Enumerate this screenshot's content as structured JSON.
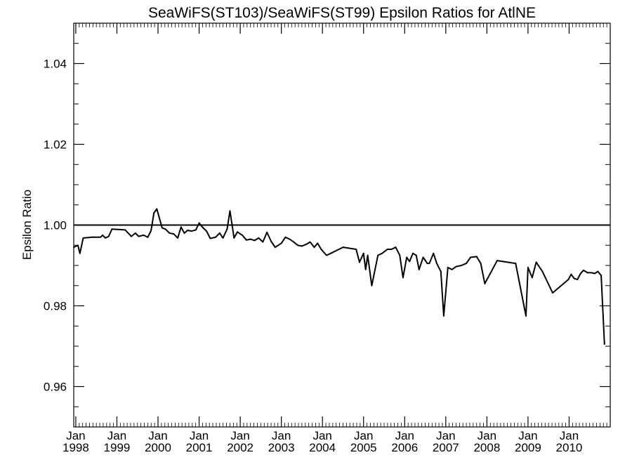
{
  "chart_data": {
    "type": "line",
    "title": "SeaWiFS(ST103)/SeaWiFS(ST99)  Epsilon Ratios for AtlNE",
    "xlabel": "",
    "ylabel": "Epsilon Ratio",
    "xlim": [
      1997.95,
      2011.0
    ],
    "ylim": [
      0.95,
      1.05
    ],
    "yticks": [
      0.96,
      0.98,
      1.0,
      1.02,
      1.04
    ],
    "ytick_labels": [
      "0.96",
      "0.98",
      "1.00",
      "1.02",
      "1.04"
    ],
    "xticks": [
      {
        "year": 1998,
        "month": "Jan",
        "label": "1998"
      },
      {
        "year": 1999,
        "month": "Jan",
        "label": "1999"
      },
      {
        "year": 2000,
        "month": "Jan",
        "label": "2000"
      },
      {
        "year": 2001,
        "month": "Jan",
        "label": "2001"
      },
      {
        "year": 2002,
        "month": "Jan",
        "label": "2002"
      },
      {
        "year": 2003,
        "month": "Jan",
        "label": "2003"
      },
      {
        "year": 2004,
        "month": "Jan",
        "label": "2004"
      },
      {
        "year": 2005,
        "month": "Jan",
        "label": "2005"
      },
      {
        "year": 2006,
        "month": "Jan",
        "label": "2006"
      },
      {
        "year": 2007,
        "month": "Jan",
        "label": "2007"
      },
      {
        "year": 2008,
        "month": "Jan",
        "label": "2008"
      },
      {
        "year": 2009,
        "month": "Jan",
        "label": "2009"
      },
      {
        "year": 2010,
        "month": "Jan",
        "label": "2010"
      }
    ],
    "reference_line": 1.0,
    "grid": false,
    "series": [
      {
        "x": [
          1997.95,
          1998.05,
          1998.1,
          1998.18,
          1998.4,
          1998.6,
          1998.65,
          1998.72,
          1998.8,
          1998.88,
          1999.2,
          1999.35,
          1999.45,
          1999.53,
          1999.65,
          1999.75,
          1999.83,
          1999.9,
          1999.97,
          2000.1,
          2000.18,
          2000.28,
          2000.38,
          2000.48,
          2000.56,
          2000.64,
          2000.72,
          2000.82,
          2000.92,
          2001.0,
          2001.08,
          2001.18,
          2001.27,
          2001.4,
          2001.5,
          2001.58,
          2001.68,
          2001.75,
          2001.85,
          2001.93,
          2002.05,
          2002.15,
          2002.25,
          2002.35,
          2002.45,
          2002.55,
          2002.65,
          2002.75,
          2002.85,
          2003.0,
          2003.1,
          2003.2,
          2003.3,
          2003.4,
          2003.5,
          2003.6,
          2003.7,
          2003.8,
          2003.88,
          2003.97,
          2004.1,
          2004.2,
          2004.5,
          2004.82,
          2004.9,
          2005.0,
          2005.05,
          2005.1,
          2005.2,
          2005.35,
          2005.45,
          2005.58,
          2005.68,
          2005.78,
          2005.88,
          2005.96,
          2006.05,
          2006.12,
          2006.2,
          2006.28,
          2006.35,
          2006.45,
          2006.55,
          2006.6,
          2006.7,
          2006.78,
          2006.88,
          2006.95,
          2007.05,
          2007.15,
          2007.25,
          2007.38,
          2007.5,
          2007.6,
          2007.75,
          2007.85,
          2007.95,
          2008.25,
          2008.7,
          2008.95,
          2009.0,
          2009.1,
          2009.2,
          2009.35,
          2009.6,
          2009.98,
          2010.05,
          2010.12,
          2010.2,
          2010.28,
          2010.35,
          2010.45,
          2010.55,
          2010.62,
          2010.7,
          2010.78,
          2010.86
        ],
        "y": [
          0.9945,
          0.995,
          0.993,
          0.9968,
          0.997,
          0.997,
          0.9975,
          0.9968,
          0.9972,
          0.999,
          0.9988,
          0.9972,
          0.998,
          0.9972,
          0.9975,
          0.997,
          0.9986,
          1.003,
          1.004,
          0.9993,
          0.999,
          0.998,
          0.9978,
          0.9968,
          0.9995,
          0.998,
          0.9987,
          0.9985,
          0.9988,
          1.0005,
          0.9995,
          0.9985,
          0.9967,
          0.997,
          0.998,
          0.9968,
          0.999,
          1.0035,
          0.9968,
          0.9983,
          0.9975,
          0.9963,
          0.9965,
          0.9962,
          0.9968,
          0.9958,
          0.9982,
          0.996,
          0.9945,
          0.9955,
          0.997,
          0.9965,
          0.9958,
          0.995,
          0.9948,
          0.9952,
          0.9958,
          0.9945,
          0.9955,
          0.994,
          0.9925,
          0.993,
          0.9945,
          0.994,
          0.9908,
          0.993,
          0.989,
          0.9925,
          0.985,
          0.9925,
          0.993,
          0.994,
          0.994,
          0.9945,
          0.9925,
          0.987,
          0.992,
          0.991,
          0.993,
          0.9925,
          0.989,
          0.992,
          0.9905,
          0.9905,
          0.993,
          0.9905,
          0.9885,
          0.9775,
          0.9895,
          0.989,
          0.9897,
          0.99,
          0.9905,
          0.992,
          0.9922,
          0.9905,
          0.9855,
          0.9912,
          0.9905,
          0.9775,
          0.9895,
          0.987,
          0.9908,
          0.9885,
          0.9832,
          0.9865,
          0.9878,
          0.9868,
          0.9865,
          0.988,
          0.9888,
          0.9882,
          0.9882,
          0.988,
          0.9885,
          0.9875,
          0.9705
        ]
      }
    ]
  }
}
